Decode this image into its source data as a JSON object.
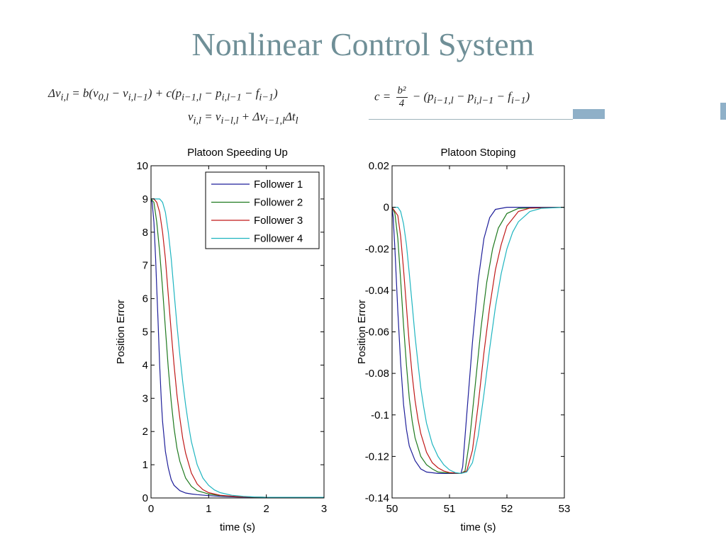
{
  "slide": {
    "title": "Nonlinear Control System"
  },
  "equations": {
    "eq1": "Δv",
    "eq1_sub": "i,l",
    "eq1_rhs": " = b(v",
    "eq1_a": "0,l",
    "eq1_b": " − v",
    "eq1_c": "i,l−1",
    "eq1_d": ") + c(p",
    "eq1_e": "i−1,l",
    "eq1_f": " − p",
    "eq1_g": "i,l−1",
    "eq1_h": " − f",
    "eq1_i": "i−1",
    "eq1_j": ")",
    "eq2_a": "v",
    "eq2_b": "i,l",
    "eq2_c": " = v",
    "eq2_d": "i−l,l",
    "eq2_e": " + Δv",
    "eq2_f": "i−1,l",
    "eq2_g": "Δt",
    "eq2_h": "l",
    "eq3_a": "c = ",
    "eq3_num": "b²",
    "eq3_den": "4",
    "eq3_b": " − (p",
    "eq3_c": "i−1,l",
    "eq3_d": " − p",
    "eq3_e": "i,l−1",
    "eq3_f": " − f",
    "eq3_g": "i−1",
    "eq3_h": ")"
  },
  "chart_data": [
    {
      "type": "line",
      "title": "Platoon Speeding Up",
      "xlabel": "time (s)",
      "ylabel": "Position Error",
      "xlim": [
        0,
        3
      ],
      "ylim": [
        0,
        10
      ],
      "xticks": [
        "0",
        "1",
        "2",
        "3"
      ],
      "yticks": [
        "0",
        "1",
        "2",
        "3",
        "4",
        "5",
        "6",
        "7",
        "8",
        "9",
        "10"
      ],
      "grid": false,
      "legend": "top-right",
      "series": [
        {
          "name": "Follower 1",
          "color": "#1f1f9a",
          "x": [
            0,
            0.02,
            0.05,
            0.08,
            0.1,
            0.12,
            0.15,
            0.18,
            0.2,
            0.25,
            0.3,
            0.35,
            0.4,
            0.5,
            0.6,
            0.7,
            0.8,
            1.0,
            1.2,
            1.5,
            2.0,
            3.0
          ],
          "y": [
            9.0,
            8.9,
            8.3,
            7.2,
            6.3,
            5.4,
            4.0,
            2.9,
            2.3,
            1.4,
            0.9,
            0.55,
            0.38,
            0.22,
            0.15,
            0.12,
            0.1,
            0.07,
            0.05,
            0.03,
            0.02,
            0.02
          ]
        },
        {
          "name": "Follower 2",
          "color": "#1f7a1f",
          "x": [
            0,
            0.05,
            0.1,
            0.15,
            0.2,
            0.25,
            0.3,
            0.35,
            0.4,
            0.45,
            0.5,
            0.6,
            0.7,
            0.8,
            1.0,
            1.2,
            1.5,
            2.0,
            3.0
          ],
          "y": [
            9.0,
            8.9,
            8.3,
            7.4,
            6.3,
            5.1,
            3.9,
            2.9,
            2.1,
            1.5,
            1.1,
            0.6,
            0.35,
            0.22,
            0.12,
            0.07,
            0.04,
            0.02,
            0.02
          ]
        },
        {
          "name": "Follower 3",
          "color": "#c01818",
          "x": [
            0,
            0.05,
            0.1,
            0.15,
            0.2,
            0.25,
            0.3,
            0.35,
            0.4,
            0.45,
            0.5,
            0.55,
            0.6,
            0.7,
            0.8,
            0.9,
            1.0,
            1.2,
            1.5,
            2.0,
            3.0
          ],
          "y": [
            9.0,
            9.0,
            8.9,
            8.6,
            8.0,
            7.2,
            6.1,
            5.0,
            4.0,
            3.1,
            2.4,
            1.8,
            1.35,
            0.75,
            0.42,
            0.25,
            0.16,
            0.08,
            0.04,
            0.02,
            0.02
          ]
        },
        {
          "name": "Follower 4",
          "color": "#1fb5c0",
          "x": [
            0,
            0.1,
            0.15,
            0.2,
            0.25,
            0.3,
            0.35,
            0.4,
            0.45,
            0.5,
            0.55,
            0.6,
            0.65,
            0.7,
            0.8,
            0.9,
            1.0,
            1.1,
            1.2,
            1.4,
            1.6,
            1.8,
            2.0,
            3.0
          ],
          "y": [
            9.0,
            9.0,
            9.0,
            8.9,
            8.6,
            8.0,
            7.2,
            6.2,
            5.2,
            4.3,
            3.5,
            2.8,
            2.2,
            1.7,
            1.0,
            0.6,
            0.38,
            0.24,
            0.16,
            0.08,
            0.05,
            0.03,
            0.02,
            0.02
          ]
        }
      ]
    },
    {
      "type": "line",
      "title": "Platoon Stoping",
      "xlabel": "time (s)",
      "ylabel": "Position Error",
      "xlim": [
        50,
        53
      ],
      "ylim": [
        -0.14,
        0.02
      ],
      "xticks": [
        "50",
        "51",
        "52",
        "53"
      ],
      "yticks": [
        "-0.14",
        "-0.12",
        "-0.1",
        "-0.08",
        "-0.06",
        "-0.04",
        "-0.02",
        "0",
        "0.02"
      ],
      "grid": false,
      "series": [
        {
          "name": "Follower 1",
          "color": "#1f1f9a",
          "x": [
            50,
            50.02,
            50.05,
            50.1,
            50.15,
            50.2,
            50.25,
            50.3,
            50.4,
            50.5,
            50.6,
            50.8,
            51.0,
            51.2,
            51.23,
            51.3,
            51.4,
            51.5,
            51.6,
            51.7,
            51.8,
            52.0,
            52.5,
            53
          ],
          "y": [
            0,
            -0.005,
            -0.02,
            -0.05,
            -0.075,
            -0.095,
            -0.107,
            -0.115,
            -0.122,
            -0.126,
            -0.1275,
            -0.1282,
            -0.1282,
            -0.1282,
            -0.125,
            -0.1,
            -0.065,
            -0.035,
            -0.015,
            -0.005,
            -0.001,
            0,
            0,
            0
          ]
        },
        {
          "name": "Follower 2",
          "color": "#1f7a1f",
          "x": [
            50,
            50.05,
            50.1,
            50.15,
            50.2,
            50.25,
            50.3,
            50.35,
            50.4,
            50.5,
            50.6,
            50.7,
            50.8,
            51.0,
            51.2,
            51.27,
            51.35,
            51.45,
            51.55,
            51.65,
            51.75,
            51.85,
            52.0,
            52.2,
            53
          ],
          "y": [
            0,
            -0.003,
            -0.015,
            -0.035,
            -0.057,
            -0.076,
            -0.092,
            -0.103,
            -0.111,
            -0.12,
            -0.124,
            -0.126,
            -0.1275,
            -0.128,
            -0.1282,
            -0.127,
            -0.112,
            -0.085,
            -0.058,
            -0.036,
            -0.02,
            -0.01,
            -0.003,
            -0.0005,
            0
          ]
        },
        {
          "name": "Follower 3",
          "color": "#c01818",
          "x": [
            50,
            50.1,
            50.15,
            50.2,
            50.25,
            50.3,
            50.35,
            50.4,
            50.45,
            50.5,
            50.6,
            50.7,
            50.8,
            50.9,
            51.0,
            51.2,
            51.3,
            51.4,
            51.5,
            51.6,
            51.7,
            51.8,
            51.9,
            52.0,
            52.2,
            52.4,
            53
          ],
          "y": [
            0,
            -0.004,
            -0.014,
            -0.03,
            -0.048,
            -0.066,
            -0.081,
            -0.093,
            -0.102,
            -0.109,
            -0.118,
            -0.123,
            -0.1255,
            -0.127,
            -0.1278,
            -0.1282,
            -0.127,
            -0.117,
            -0.095,
            -0.07,
            -0.048,
            -0.03,
            -0.018,
            -0.009,
            -0.002,
            -0.0004,
            0
          ]
        },
        {
          "name": "Follower 4",
          "color": "#1fb5c0",
          "x": [
            50,
            50.1,
            50.15,
            50.2,
            50.25,
            50.3,
            50.35,
            50.4,
            50.45,
            50.5,
            50.55,
            50.6,
            50.7,
            50.8,
            50.9,
            51.0,
            51.1,
            51.2,
            51.3,
            51.4,
            51.5,
            51.6,
            51.7,
            51.8,
            51.9,
            52.0,
            52.1,
            52.2,
            52.4,
            52.6,
            53
          ],
          "y": [
            0,
            0,
            -0.002,
            -0.008,
            -0.018,
            -0.032,
            -0.047,
            -0.062,
            -0.075,
            -0.087,
            -0.096,
            -0.104,
            -0.114,
            -0.12,
            -0.124,
            -0.1265,
            -0.1278,
            -0.1282,
            -0.1275,
            -0.123,
            -0.11,
            -0.09,
            -0.068,
            -0.048,
            -0.032,
            -0.02,
            -0.012,
            -0.007,
            -0.002,
            -0.0005,
            0
          ]
        }
      ]
    }
  ]
}
